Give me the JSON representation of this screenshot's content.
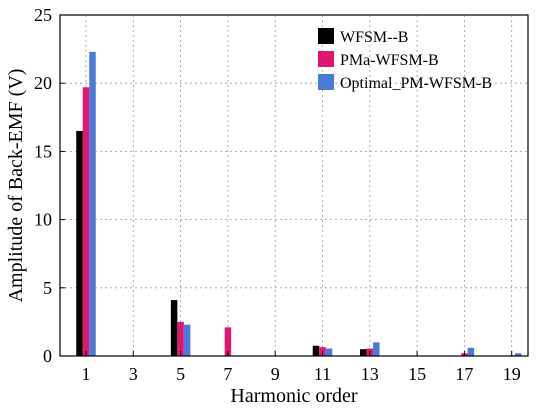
{
  "chart_data": {
    "type": "bar",
    "title": "",
    "xlabel": "Harmonic order",
    "ylabel": "Amplitude of Back-EMF (V)",
    "categories": [
      "1",
      "3",
      "5",
      "7",
      "9",
      "11",
      "13",
      "15",
      "17",
      "19"
    ],
    "ylim": [
      0,
      25
    ],
    "yticks": [
      0,
      5,
      10,
      15,
      20,
      25
    ],
    "grid": true,
    "legend_position": "top-right",
    "series": [
      {
        "name": "WFSM--B",
        "color": "#000000",
        "values": [
          16.5,
          0,
          4.1,
          0,
          0,
          0.75,
          0.5,
          0,
          0,
          0
        ]
      },
      {
        "name": "PMa-WFSM-B",
        "color": "#e0176f",
        "values": [
          19.7,
          0,
          2.5,
          2.1,
          0,
          0.65,
          0.55,
          0,
          0.2,
          0.05
        ]
      },
      {
        "name": "Optimal_PM-WFSM-B",
        "color": "#4a7bd8",
        "values": [
          22.3,
          0,
          2.3,
          0,
          0,
          0.55,
          1.0,
          0,
          0.6,
          0.2
        ]
      }
    ]
  }
}
